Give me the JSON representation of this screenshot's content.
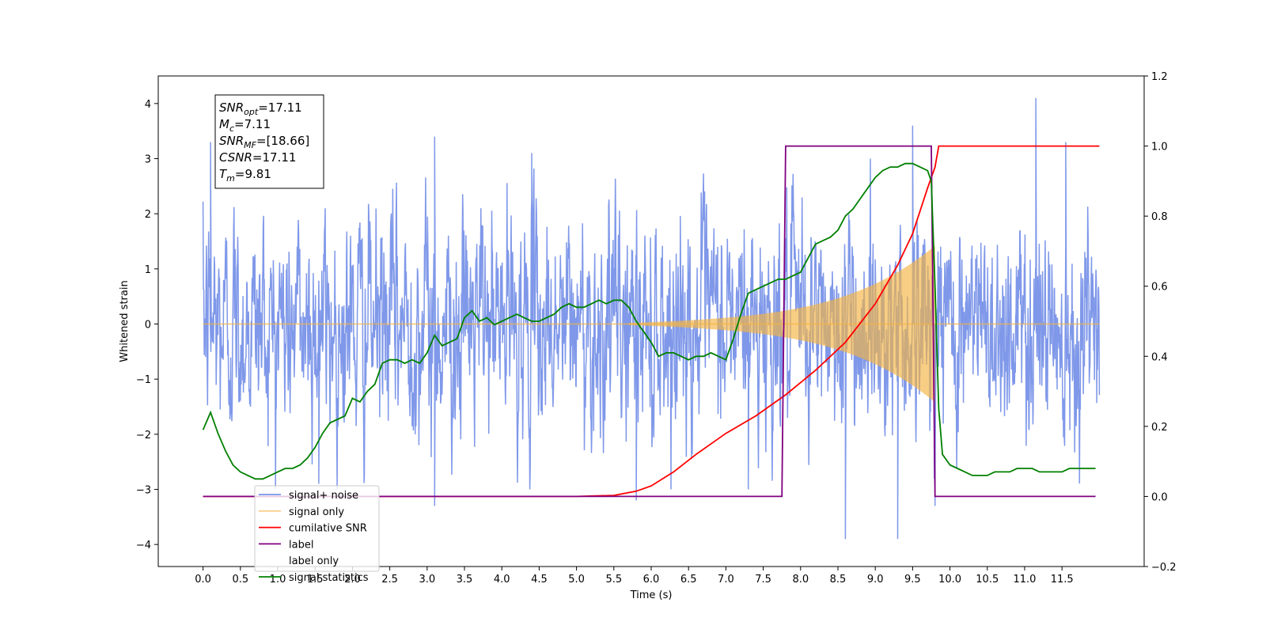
{
  "chart_data": {
    "type": "line",
    "title": "",
    "xlabel": "Time (s)",
    "ylabel": "Whitened strain",
    "y2label": "",
    "xlim": [
      -0.6,
      12.6
    ],
    "ylim": [
      -4.4,
      4.5
    ],
    "y2lim": [
      -0.2,
      1.2
    ],
    "x_ticks": [
      "0.0",
      "0.5",
      "1.0",
      "1.5",
      "2.0",
      "2.5",
      "3.0",
      "3.5",
      "4.0",
      "4.5",
      "5.0",
      "5.5",
      "6.0",
      "6.5",
      "7.0",
      "7.5",
      "8.0",
      "8.5",
      "9.0",
      "9.5",
      "10.0",
      "10.5",
      "11.0",
      "11.5"
    ],
    "y_ticks": [
      "-4",
      "-3",
      "-2",
      "-1",
      "0",
      "1",
      "2",
      "3",
      "4"
    ],
    "y2_ticks": [
      "-0.2",
      "0.0",
      "0.2",
      "0.4",
      "0.6",
      "0.8",
      "1.0",
      "1.2"
    ],
    "grid": false,
    "legend_position": "lower-left",
    "annotation": {
      "lines": [
        {
          "base": "SNR",
          "sub": "opt",
          "value": "=17.11"
        },
        {
          "base": "M",
          "sub": "c",
          "value": "=7.11"
        },
        {
          "base": "SNR",
          "sub": "MF",
          "value": "=[18.66]"
        },
        {
          "base": "CSNR",
          "sub": "",
          "value": "=17.11"
        },
        {
          "base": "T",
          "sub": "m",
          "value": "=9.81"
        }
      ]
    },
    "series": [
      {
        "name": "signal+ noise",
        "color": "#7892e8",
        "axis": "left",
        "style": "noise",
        "x_range": [
          0.0,
          12.0
        ],
        "std": 0.8,
        "peaks": [
          [
            0.1,
            3.3
          ],
          [
            3.1,
            3.4
          ],
          [
            4.4,
            3.1
          ],
          [
            9.5,
            3.6
          ],
          [
            11.15,
            4.1
          ],
          [
            11.55,
            3.3
          ],
          [
            3.1,
            -3.3
          ],
          [
            5.8,
            -3.2
          ],
          [
            7.3,
            -3.0
          ],
          [
            8.6,
            -3.9
          ],
          [
            9.3,
            -3.9
          ],
          [
            9.8,
            -3.3
          ],
          [
            1.55,
            -2.9
          ]
        ]
      },
      {
        "name": "signal only",
        "color": "#f5b342",
        "axis": "left",
        "style": "chirp",
        "x_range": [
          0.0,
          12.0
        ],
        "chirp_start": 5.7,
        "chirp_end": 9.8,
        "amp_start": 0.02,
        "amp_end": 1.05
      },
      {
        "name": "cumilative SNR",
        "color": "#ff0000",
        "axis": "right",
        "x": [
          0.0,
          5.0,
          5.5,
          5.8,
          6.0,
          6.3,
          6.6,
          7.0,
          7.4,
          7.8,
          8.2,
          8.6,
          9.0,
          9.3,
          9.5,
          9.7,
          9.8,
          9.85,
          12.0
        ],
        "y": [
          0.0,
          0.0,
          0.003,
          0.015,
          0.03,
          0.07,
          0.12,
          0.18,
          0.23,
          0.29,
          0.36,
          0.44,
          0.55,
          0.66,
          0.75,
          0.88,
          0.94,
          1.0,
          1.0
        ]
      },
      {
        "name": "label",
        "color": "#800080",
        "axis": "right",
        "x": [
          0.0,
          7.75,
          7.8,
          9.75,
          9.8,
          11.95
        ],
        "y": [
          0.0,
          0.0,
          1.0,
          1.0,
          0.0,
          0.0
        ]
      },
      {
        "name": "label only",
        "color": "#000000",
        "axis": "right",
        "hidden": true,
        "x": [],
        "y": []
      },
      {
        "name": "signal statistics",
        "color": "#008000",
        "axis": "right",
        "x": [
          0.0,
          0.1,
          0.2,
          0.3,
          0.4,
          0.5,
          0.6,
          0.7,
          0.8,
          0.9,
          1.0,
          1.1,
          1.2,
          1.3,
          1.4,
          1.5,
          1.6,
          1.7,
          1.8,
          1.9,
          2.0,
          2.1,
          2.2,
          2.3,
          2.4,
          2.5,
          2.6,
          2.7,
          2.8,
          2.9,
          3.0,
          3.1,
          3.2,
          3.3,
          3.4,
          3.5,
          3.6,
          3.7,
          3.8,
          3.9,
          4.0,
          4.1,
          4.2,
          4.3,
          4.4,
          4.5,
          4.6,
          4.7,
          4.8,
          4.9,
          5.0,
          5.1,
          5.2,
          5.3,
          5.4,
          5.5,
          5.6,
          5.7,
          5.8,
          5.9,
          6.0,
          6.1,
          6.2,
          6.3,
          6.4,
          6.5,
          6.6,
          6.7,
          6.8,
          6.9,
          7.0,
          7.1,
          7.2,
          7.3,
          7.4,
          7.5,
          7.6,
          7.7,
          7.8,
          7.9,
          8.0,
          8.1,
          8.2,
          8.3,
          8.4,
          8.5,
          8.6,
          8.7,
          8.8,
          8.9,
          9.0,
          9.1,
          9.2,
          9.3,
          9.4,
          9.5,
          9.6,
          9.7,
          9.75,
          9.8,
          9.85,
          9.9,
          10.0,
          10.1,
          10.2,
          10.3,
          10.4,
          10.5,
          10.6,
          10.7,
          10.8,
          10.9,
          11.0,
          11.1,
          11.2,
          11.3,
          11.4,
          11.5,
          11.6,
          11.7,
          11.8,
          11.9,
          11.95
        ],
        "y": [
          0.19,
          0.24,
          0.18,
          0.13,
          0.09,
          0.07,
          0.06,
          0.05,
          0.05,
          0.06,
          0.07,
          0.08,
          0.08,
          0.09,
          0.11,
          0.14,
          0.18,
          0.21,
          0.22,
          0.23,
          0.28,
          0.27,
          0.3,
          0.32,
          0.38,
          0.39,
          0.39,
          0.38,
          0.39,
          0.38,
          0.41,
          0.46,
          0.43,
          0.44,
          0.45,
          0.51,
          0.53,
          0.5,
          0.51,
          0.49,
          0.5,
          0.51,
          0.52,
          0.51,
          0.5,
          0.5,
          0.51,
          0.52,
          0.54,
          0.55,
          0.54,
          0.54,
          0.55,
          0.56,
          0.55,
          0.56,
          0.56,
          0.54,
          0.5,
          0.47,
          0.44,
          0.4,
          0.41,
          0.41,
          0.4,
          0.39,
          0.4,
          0.4,
          0.41,
          0.4,
          0.39,
          0.45,
          0.52,
          0.58,
          0.59,
          0.6,
          0.61,
          0.62,
          0.62,
          0.63,
          0.64,
          0.68,
          0.72,
          0.73,
          0.74,
          0.76,
          0.8,
          0.82,
          0.85,
          0.88,
          0.91,
          0.93,
          0.94,
          0.94,
          0.95,
          0.95,
          0.94,
          0.93,
          0.9,
          0.6,
          0.25,
          0.12,
          0.09,
          0.08,
          0.07,
          0.06,
          0.06,
          0.06,
          0.07,
          0.07,
          0.07,
          0.08,
          0.08,
          0.08,
          0.07,
          0.07,
          0.07,
          0.07,
          0.08,
          0.08,
          0.08,
          0.08,
          0.08
        ]
      }
    ]
  }
}
